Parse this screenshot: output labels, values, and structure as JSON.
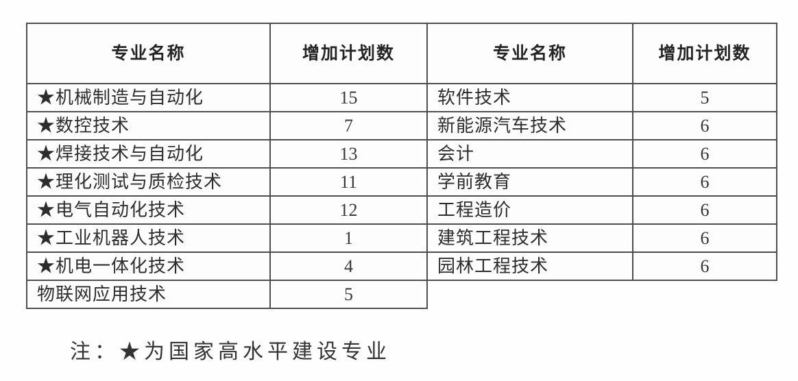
{
  "page": {
    "background_color": "#fefefe",
    "border_color": "#4d4d4d",
    "text_color": "#2d2d2d",
    "star_glyph": "★"
  },
  "table": {
    "headers": [
      "专业名称",
      "增加计划数",
      "专业名称",
      "增加计划数"
    ],
    "left_rows": [
      {
        "major": "★机械制造与自动化",
        "plan": "15"
      },
      {
        "major": "★数控技术",
        "plan": "7"
      },
      {
        "major": "★焊接技术与自动化",
        "plan": "13"
      },
      {
        "major": "★理化测试与质检技术",
        "plan": "11"
      },
      {
        "major": "★电气自动化技术",
        "plan": "12"
      },
      {
        "major": "★工业机器人技术",
        "plan": "1"
      },
      {
        "major": "★机电一体化技术",
        "plan": "4"
      },
      {
        "major": "物联网应用技术",
        "plan": "5"
      }
    ],
    "right_rows": [
      {
        "major": "软件技术",
        "plan": "5"
      },
      {
        "major": "新能源汽车技术",
        "plan": "6"
      },
      {
        "major": "会计",
        "plan": "6"
      },
      {
        "major": "学前教育",
        "plan": "6"
      },
      {
        "major": "工程造价",
        "plan": "6"
      },
      {
        "major": "建筑工程技术",
        "plan": "6"
      },
      {
        "major": "园林工程技术",
        "plan": "6"
      }
    ]
  },
  "note": {
    "text": "注：★为国家高水平建设专业"
  }
}
